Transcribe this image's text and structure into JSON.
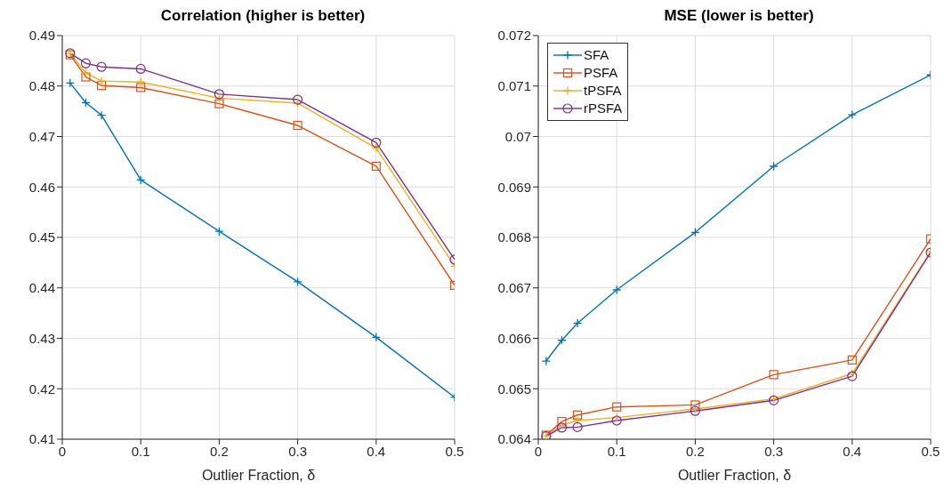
{
  "chart_data": [
    {
      "type": "line",
      "title": "Correlation (higher is better)",
      "xlabel": "Outlier Fraction, δ",
      "x": [
        0.01,
        0.03,
        0.05,
        0.1,
        0.2,
        0.3,
        0.4,
        0.5
      ],
      "xlim": [
        0,
        0.5
      ],
      "xticks": [
        0,
        0.1,
        0.2,
        0.3,
        0.4,
        0.5
      ],
      "ylim": [
        0.41,
        0.49
      ],
      "yticks": [
        0.41,
        0.42,
        0.43,
        0.44,
        0.45,
        0.46,
        0.47,
        0.48,
        0.49
      ],
      "grid": true,
      "legend": false,
      "line_style": "solid",
      "series": [
        {
          "color": "#0072bd",
          "marker": "cross",
          "values": [
            0.4806,
            0.4767,
            0.4742,
            0.4614,
            0.4512,
            0.4412,
            0.4302,
            0.4183
          ]
        },
        {
          "color": "#d95319",
          "marker": "square",
          "values": [
            0.4862,
            0.4818,
            0.4801,
            0.4797,
            0.4765,
            0.4722,
            0.4641,
            0.4405
          ]
        },
        {
          "color": "#edb120",
          "marker": "cross",
          "values": [
            0.4864,
            0.4826,
            0.481,
            0.4808,
            0.4776,
            0.4766,
            0.4677,
            0.4443
          ]
        },
        {
          "color": "#7e2f8e",
          "marker": "circle",
          "values": [
            0.4865,
            0.4845,
            0.4838,
            0.4834,
            0.4784,
            0.4773,
            0.4688,
            0.4456
          ]
        }
      ]
    },
    {
      "type": "line",
      "title": "MSE (lower is better)",
      "xlabel": "Outlier Fraction, δ",
      "x": [
        0.01,
        0.03,
        0.05,
        0.1,
        0.2,
        0.3,
        0.4,
        0.5
      ],
      "xlim": [
        0,
        0.5
      ],
      "xticks": [
        0,
        0.1,
        0.2,
        0.3,
        0.4,
        0.5
      ],
      "ylim": [
        0.064,
        0.072
      ],
      "yticks": [
        0.064,
        0.065,
        0.066,
        0.067,
        0.068,
        0.069,
        0.07,
        0.071,
        0.072
      ],
      "grid": true,
      "legend": "top left",
      "line_style": "solid",
      "series": [
        {
          "name": "SFA",
          "color": "#0072bd",
          "marker": "cross",
          "values": [
            0.06555,
            0.06596,
            0.0663,
            0.06696,
            0.0681,
            0.06941,
            0.07043,
            0.07122
          ]
        },
        {
          "name": "PSFA",
          "color": "#d95319",
          "marker": "square",
          "values": [
            0.06408,
            0.06435,
            0.06448,
            0.06464,
            0.06468,
            0.06528,
            0.06557,
            0.06797
          ]
        },
        {
          "name": "tPSFA",
          "color": "#edb120",
          "marker": "cross",
          "values": [
            0.06407,
            0.06428,
            0.06437,
            0.06443,
            0.0646,
            0.0648,
            0.0653,
            0.06772
          ]
        },
        {
          "name": "rPSFA",
          "color": "#7e2f8e",
          "marker": "circle",
          "values": [
            0.06406,
            0.06423,
            0.06424,
            0.06437,
            0.06456,
            0.06477,
            0.06525,
            0.0677
          ]
        }
      ]
    }
  ]
}
